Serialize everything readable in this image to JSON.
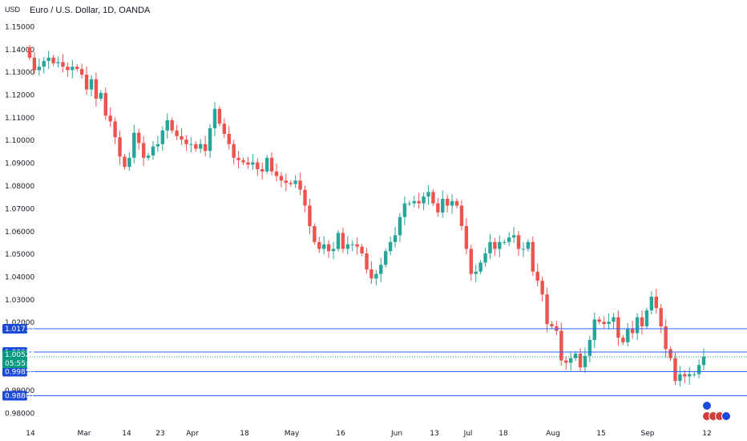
{
  "header": {
    "currency": "USD",
    "title": "Euro / U.S. Dollar, 1D, OANDA"
  },
  "chart_data": {
    "type": "candlestick",
    "y_ticks": [
      "1.15000",
      "1.14000",
      "1.13000",
      "1.12000",
      "1.11000",
      "1.10000",
      "1.09000",
      "1.08000",
      "1.07000",
      "1.06000",
      "1.05000",
      "1.04000",
      "1.03000",
      "1.02000",
      "0.99000",
      "0.98000"
    ],
    "x_ticks": [
      "14",
      "Mar",
      "14",
      "23",
      "Apr",
      "18",
      "May",
      "16",
      "Jun",
      "13",
      "Jul",
      "18",
      "Aug",
      "15",
      "Sep",
      "12"
    ],
    "ylim": [
      0.976,
      1.155
    ],
    "up_color": "#26a69a",
    "down_color": "#ef5350",
    "closes": [
      1.1365,
      1.131,
      1.1325,
      1.135,
      1.1365,
      1.134,
      1.1345,
      1.1325,
      1.131,
      1.1325,
      1.1315,
      1.129,
      1.1225,
      1.127,
      1.1185,
      1.121,
      1.111,
      1.1085,
      1.1015,
      1.093,
      1.0885,
      1.0925,
      1.1035,
      1.099,
      1.0925,
      1.0935,
      1.0975,
      1.0985,
      1.1045,
      1.109,
      1.1045,
      1.102,
      1.1005,
      1.0985,
      1.0985,
      1.0965,
      1.0985,
      1.0955,
      1.1055,
      1.114,
      1.1075,
      1.103,
      1.0985,
      1.0925,
      1.0915,
      1.0905,
      1.0895,
      1.0905,
      1.0875,
      1.0865,
      1.0925,
      1.0865,
      1.0845,
      1.0825,
      1.0815,
      1.081,
      1.0825,
      1.0785,
      1.0715,
      1.0625,
      1.0555,
      1.0525,
      1.0545,
      1.0515,
      1.0525,
      1.0595,
      1.0525,
      1.0545,
      1.0545,
      1.0535,
      1.0505,
      1.0435,
      1.0395,
      1.0415,
      1.0455,
      1.0515,
      1.0555,
      1.0585,
      1.0665,
      1.0725,
      1.0725,
      1.0735,
      1.0725,
      1.0755,
      1.0775,
      1.0725,
      1.0685,
      1.0745,
      1.0715,
      1.0735,
      1.0715,
      1.0625,
      1.0525,
      1.0415,
      1.0425,
      1.0465,
      1.0505,
      1.0555,
      1.0525,
      1.0555,
      1.0555,
      1.0575,
      1.0585,
      1.0525,
      1.0525,
      1.0555,
      1.0425,
      1.0385,
      1.0325,
      1.0195,
      1.0185,
      1.0165,
      1.0035,
      1.0025,
      1.0045,
      1.0065,
      1.0005,
      1.0055,
      1.0125,
      1.0215,
      1.0205,
      1.0195,
      1.0205,
      1.0225,
      1.0135,
      1.0115,
      1.0175,
      1.0155,
      1.0225,
      1.0185,
      1.0255,
      1.0315,
      1.0265,
      1.0185,
      1.0085,
      1.0045,
      0.9945,
      0.9975,
      0.9965,
      0.9975,
      0.9975,
      1.0015,
      1.0052
    ]
  }
}
